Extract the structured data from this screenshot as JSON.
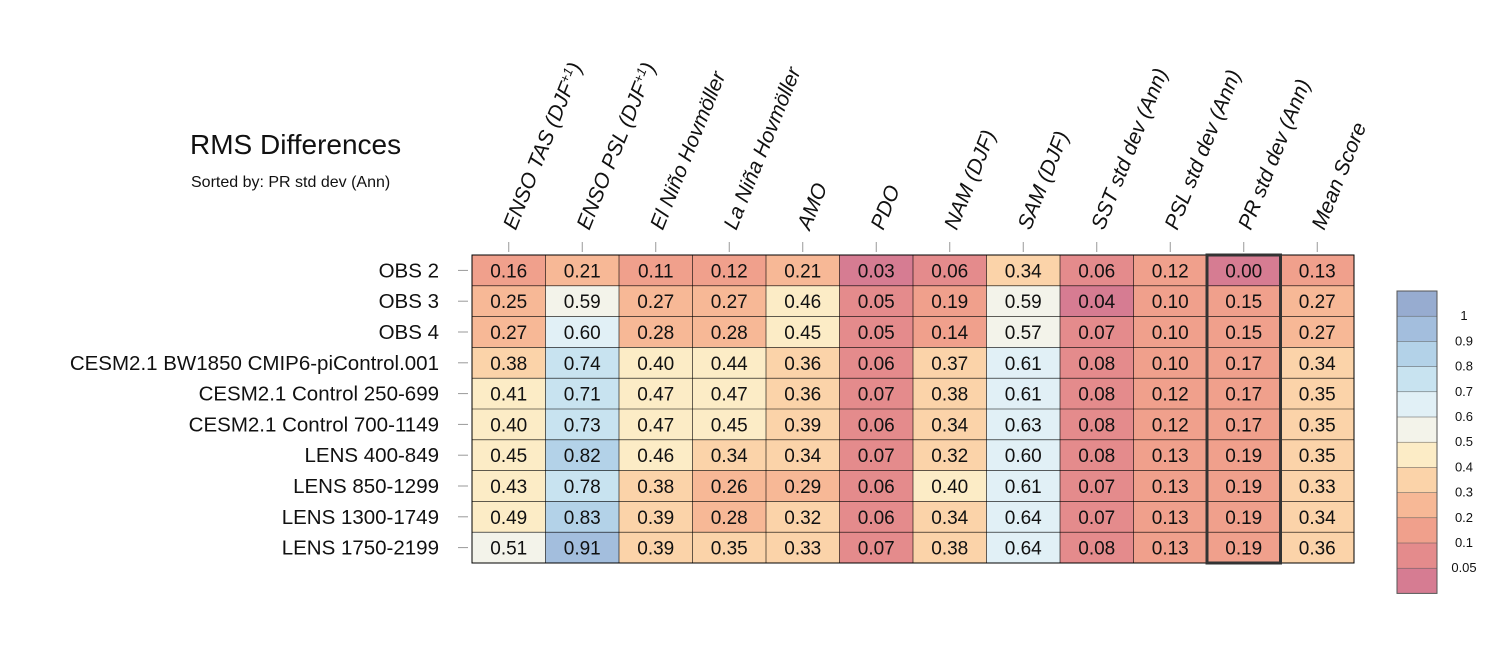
{
  "chart_data": {
    "type": "heatmap",
    "title": "RMS Differences",
    "subtitle": "Sorted by: PR std dev (Ann)",
    "columns": [
      {
        "label": "ENSO TAS (DJF",
        "sup": "+1",
        "suffix": ")"
      },
      {
        "label": "ENSO PSL (DJF",
        "sup": "+1",
        "suffix": ")"
      },
      {
        "label": "El Niño Hovmöller",
        "sup": "",
        "suffix": ""
      },
      {
        "label": "La Niña Hovmöller",
        "sup": "",
        "suffix": ""
      },
      {
        "label": "AMO",
        "sup": "",
        "suffix": ""
      },
      {
        "label": "PDO",
        "sup": "",
        "suffix": ""
      },
      {
        "label": "NAM (DJF)",
        "sup": "",
        "suffix": ""
      },
      {
        "label": "SAM (DJF)",
        "sup": "",
        "suffix": ""
      },
      {
        "label": "SST std dev (Ann)",
        "sup": "",
        "suffix": ""
      },
      {
        "label": "PSL std dev (Ann)",
        "sup": "",
        "suffix": ""
      },
      {
        "label": "PR std dev (Ann)",
        "sup": "",
        "suffix": ""
      },
      {
        "label": "Mean Score",
        "sup": "",
        "suffix": ""
      }
    ],
    "rows": [
      "OBS 2",
      "OBS 3",
      "OBS 4",
      "CESM2.1 BW1850 CMIP6-piControl.001",
      "CESM2.1 Control 250-699",
      "CESM2.1 Control 700-1149",
      "LENS 400-849",
      "LENS 850-1299",
      "LENS 1300-1749",
      "LENS 1750-2199"
    ],
    "values": [
      [
        0.16,
        0.21,
        0.11,
        0.12,
        0.21,
        0.03,
        0.06,
        0.34,
        0.06,
        0.12,
        0.0,
        0.13
      ],
      [
        0.25,
        0.59,
        0.27,
        0.27,
        0.46,
        0.05,
        0.19,
        0.59,
        0.04,
        0.1,
        0.15,
        0.27
      ],
      [
        0.27,
        0.6,
        0.28,
        0.28,
        0.45,
        0.05,
        0.14,
        0.57,
        0.07,
        0.1,
        0.15,
        0.27
      ],
      [
        0.38,
        0.74,
        0.4,
        0.44,
        0.36,
        0.06,
        0.37,
        0.61,
        0.08,
        0.1,
        0.17,
        0.34
      ],
      [
        0.41,
        0.71,
        0.47,
        0.47,
        0.36,
        0.07,
        0.38,
        0.61,
        0.08,
        0.12,
        0.17,
        0.35
      ],
      [
        0.4,
        0.73,
        0.47,
        0.45,
        0.39,
        0.06,
        0.34,
        0.63,
        0.08,
        0.12,
        0.17,
        0.35
      ],
      [
        0.45,
        0.82,
        0.46,
        0.34,
        0.34,
        0.07,
        0.32,
        0.6,
        0.08,
        0.13,
        0.19,
        0.35
      ],
      [
        0.43,
        0.78,
        0.38,
        0.26,
        0.29,
        0.06,
        0.4,
        0.61,
        0.07,
        0.13,
        0.19,
        0.33
      ],
      [
        0.49,
        0.83,
        0.39,
        0.28,
        0.32,
        0.06,
        0.34,
        0.64,
        0.07,
        0.13,
        0.19,
        0.34
      ],
      [
        0.51,
        0.91,
        0.39,
        0.35,
        0.33,
        0.07,
        0.38,
        0.64,
        0.08,
        0.13,
        0.19,
        0.36
      ]
    ],
    "highlight_column": "PR std dev (Ann)",
    "colorbar": {
      "levels": [
        0,
        0.05,
        0.1,
        0.2,
        0.3,
        0.4,
        0.5,
        0.6,
        0.7,
        0.8,
        0.9,
        1,
        1.1
      ],
      "colors": [
        "#d67c92",
        "#e48b8c",
        "#f0a08c",
        "#f7b896",
        "#fbd3a9",
        "#fcecc6",
        "#f3f3ea",
        "#e1f0f6",
        "#c8e3f0",
        "#b3d2e8",
        "#a3bedd",
        "#97acd0"
      ],
      "tick_labels": [
        "0.05",
        "0.1",
        "0.2",
        "0.3",
        "0.4",
        "0.5",
        "0.6",
        "0.7",
        "0.8",
        "0.9",
        "1"
      ]
    }
  }
}
